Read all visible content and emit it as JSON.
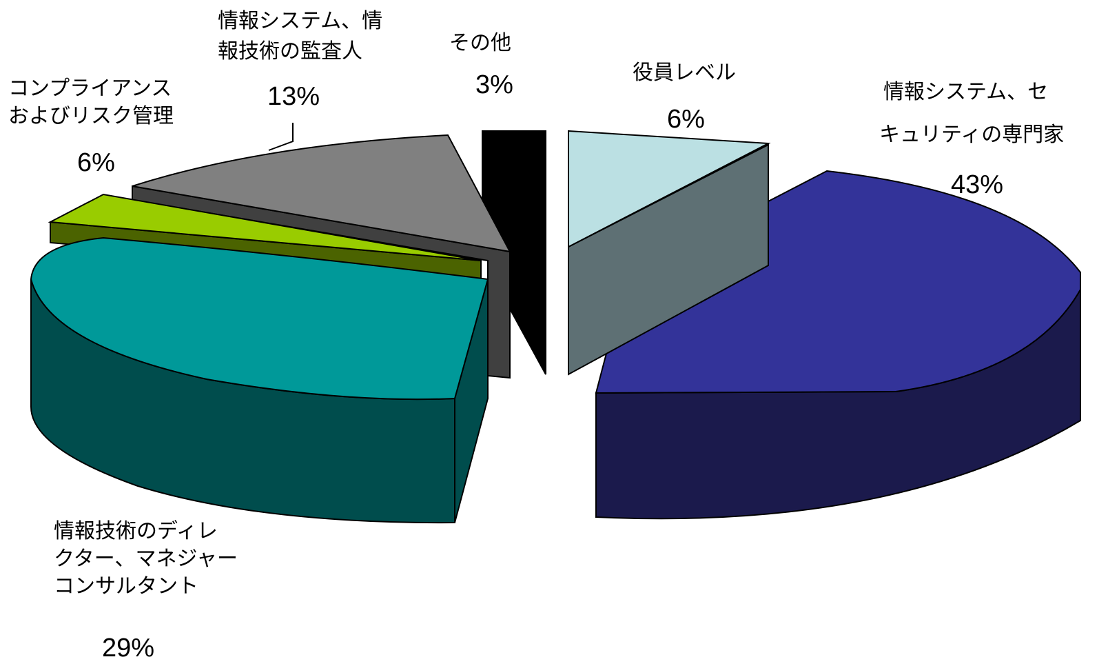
{
  "chart_data": {
    "type": "pie",
    "title": "",
    "slices": [
      {
        "label_lines": [
          "情報システム、セ",
          "キュリティの専門家"
        ],
        "value": 43,
        "percent_label": "43%",
        "color": "#333399"
      },
      {
        "label_lines": [
          "情報技術のディレ",
          "クター、マネジャー",
          "コンサルタント"
        ],
        "value": 29,
        "percent_label": "29%",
        "color": "#009999"
      },
      {
        "label_lines": [
          "コンプライアンス",
          "およびリスク管理"
        ],
        "value": 6,
        "percent_label": "6%",
        "color": "#99cc00"
      },
      {
        "label_lines": [
          "情報システム、情",
          "報技術の監査人"
        ],
        "value": 13,
        "percent_label": "13%",
        "color": "#808080"
      },
      {
        "label_lines": [
          "その他"
        ],
        "value": 3,
        "percent_label": "3%",
        "color": "#000000"
      },
      {
        "label_lines": [
          "役員レベル"
        ],
        "value": 6,
        "percent_label": "6%",
        "color": "#bbe0e3"
      }
    ]
  }
}
